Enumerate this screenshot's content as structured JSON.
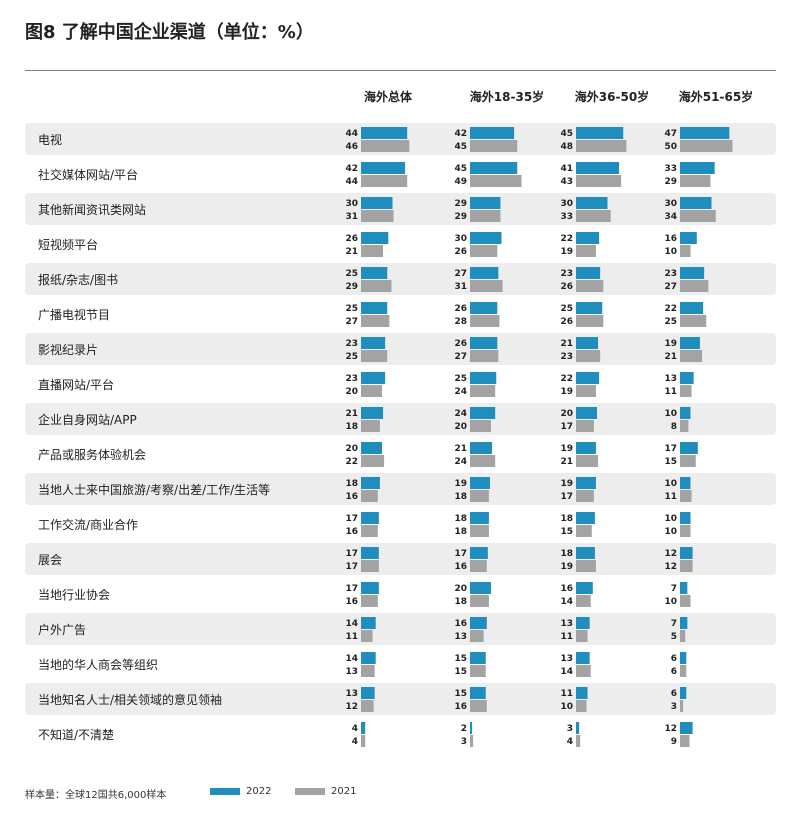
{
  "title": "图8  了解中国企业渠道（单位：%）",
  "footer_note": "样本量：全球12国共6,000样本",
  "colors": {
    "year2022": "#1f8dbd",
    "year2021": "#a3a3a3",
    "row_band": "#ededed"
  },
  "chart_data": {
    "type": "bar",
    "orientation": "horizontal",
    "categories": [
      "电视",
      "社交媒体网站/平台",
      "其他新闻资讯类网站",
      "短视频平台",
      "报纸/杂志/图书",
      "广播电视节目",
      "影视纪录片",
      "直播网站/平台",
      "企业自身网站/APP",
      "产品或服务体验机会",
      "当地人士来中国旅游/考察/出差/工作/生活等",
      "工作交流/商业合作",
      "展会",
      "当地行业协会",
      "户外广告",
      "当地的华人商会等组织",
      "当地知名人士/相关领域的意见领袖",
      "不知道/不清楚"
    ],
    "legend": [
      "2022",
      "2021"
    ],
    "panels": [
      {
        "name": "海外总体",
        "series": [
          {
            "name": "2022",
            "values": [
              44,
              42,
              30,
              26,
              25,
              25,
              23,
              23,
              21,
              20,
              18,
              17,
              17,
              17,
              14,
              14,
              13,
              4
            ]
          },
          {
            "name": "2021",
            "values": [
              46,
              44,
              31,
              21,
              29,
              27,
              25,
              20,
              18,
              22,
              16,
              16,
              17,
              16,
              11,
              13,
              12,
              4
            ]
          }
        ]
      },
      {
        "name": "海外18-35岁",
        "series": [
          {
            "name": "2022",
            "values": [
              42,
              45,
              29,
              30,
              27,
              26,
              26,
              25,
              24,
              21,
              19,
              18,
              17,
              20,
              16,
              15,
              15,
              2
            ]
          },
          {
            "name": "2021",
            "values": [
              45,
              49,
              29,
              26,
              31,
              28,
              27,
              24,
              20,
              24,
              18,
              18,
              16,
              18,
              13,
              15,
              16,
              3
            ]
          }
        ]
      },
      {
        "name": "海外36-50岁",
        "series": [
          {
            "name": "2022",
            "values": [
              45,
              41,
              30,
              22,
              23,
              25,
              21,
              22,
              20,
              19,
              19,
              18,
              18,
              16,
              13,
              13,
              11,
              3
            ]
          },
          {
            "name": "2021",
            "values": [
              48,
              43,
              33,
              19,
              26,
              26,
              23,
              19,
              17,
              21,
              17,
              15,
              19,
              14,
              11,
              14,
              10,
              4
            ]
          }
        ]
      },
      {
        "name": "海外51-65岁",
        "series": [
          {
            "name": "2022",
            "values": [
              47,
              33,
              30,
              16,
              23,
              22,
              19,
              13,
              10,
              17,
              10,
              10,
              12,
              7,
              7,
              6,
              6,
              12
            ]
          },
          {
            "name": "2021",
            "values": [
              50,
              29,
              34,
              10,
              27,
              25,
              21,
              11,
              8,
              15,
              11,
              10,
              12,
              10,
              5,
              6,
              3,
              9
            ]
          }
        ]
      }
    ]
  }
}
